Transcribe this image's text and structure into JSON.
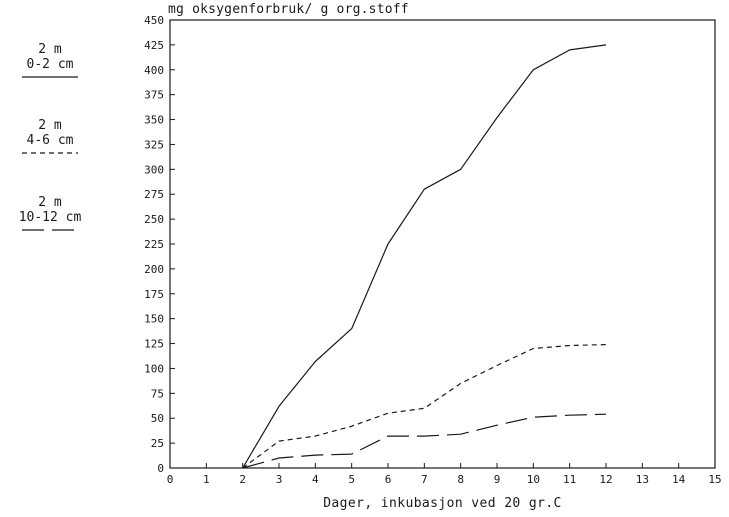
{
  "chart_data": {
    "type": "line",
    "title": "",
    "ylabel": "mg oksygenforbruk/ g org.stoff",
    "xlabel": "Dager,  inkubasjon ved 20 gr.C",
    "xlim": [
      0,
      15
    ],
    "ylim": [
      0,
      450
    ],
    "xticks": [
      0,
      1,
      2,
      3,
      4,
      5,
      6,
      7,
      8,
      9,
      10,
      11,
      12,
      13,
      14,
      15
    ],
    "yticks": [
      0,
      25,
      50,
      75,
      100,
      125,
      150,
      175,
      200,
      225,
      250,
      275,
      300,
      325,
      350,
      375,
      400,
      425,
      450
    ],
    "grid": false,
    "legend_position": "left",
    "series": [
      {
        "name": "2 m 0-2 cm",
        "depth": "2 m",
        "layer": "0-2 cm",
        "style": "solid",
        "x": [
          2,
          3,
          4,
          5,
          6,
          7,
          8,
          9,
          10,
          11,
          12
        ],
        "y": [
          0,
          62,
          107,
          140,
          225,
          280,
          300,
          352,
          400,
          420,
          425
        ]
      },
      {
        "name": "2 m 4-6 cm",
        "depth": "2 m",
        "layer": "4-6 cm",
        "style": "short-dash",
        "x": [
          2,
          3,
          4,
          5,
          6,
          7,
          8,
          9,
          10,
          11,
          12
        ],
        "y": [
          0,
          27,
          32,
          42,
          55,
          60,
          85,
          103,
          120,
          123,
          124
        ]
      },
      {
        "name": "2 m 10-12 cm",
        "depth": "2 m",
        "layer": "10-12 cm",
        "style": "long-dash",
        "x": [
          2,
          3,
          4,
          5,
          6,
          7,
          8,
          9,
          10,
          11,
          12
        ],
        "y": [
          0,
          10,
          13,
          14,
          32,
          32,
          34,
          43,
          51,
          53,
          54
        ]
      }
    ]
  }
}
